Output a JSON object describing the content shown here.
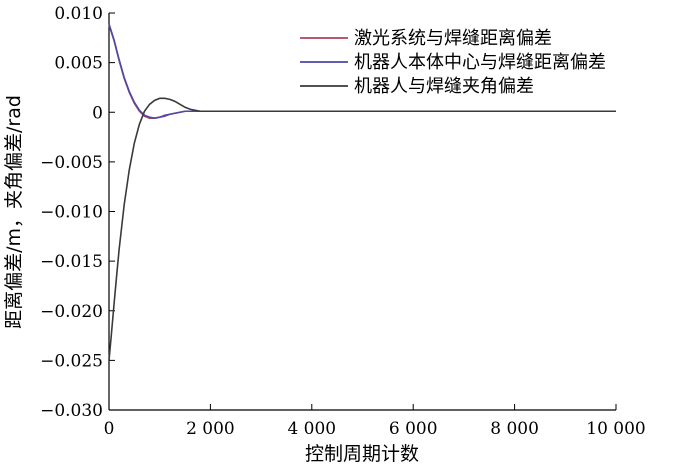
{
  "chart_data": {
    "type": "line",
    "title": "",
    "xlabel": "控制周期计数",
    "ylabel": "距离偏差/m，夹角偏差/rad",
    "xlim": [
      0,
      10000
    ],
    "ylim": [
      -0.03,
      0.01
    ],
    "x_ticks": [
      0,
      2000,
      4000,
      6000,
      8000,
      10000
    ],
    "x_tick_labels": [
      "0",
      "2 000",
      "4 000",
      "6 000",
      "8 000",
      "10 000"
    ],
    "y_ticks": [
      0.01,
      0.005,
      0,
      -0.005,
      -0.01,
      -0.015,
      -0.02,
      -0.025,
      -0.03
    ],
    "y_tick_labels": [
      "0.010",
      "0.005",
      "0",
      "−0.005",
      "−0.010",
      "−0.015",
      "−0.020",
      "−0.025",
      "−0.030"
    ],
    "grid": false,
    "legend_position": "top-right",
    "series": [
      {
        "name": "激光系统与焊缝距离偏差",
        "color": "#b0405a",
        "x": [
          0,
          100,
          200,
          300,
          400,
          500,
          600,
          700,
          800,
          900,
          1000,
          1100,
          1200,
          1300,
          1400,
          1500,
          1600,
          1700,
          1800,
          1900,
          2000,
          2200,
          2500,
          3000,
          4000,
          6000,
          8000,
          10000
        ],
        "y": [
          0.0088,
          0.0072,
          0.0052,
          0.0034,
          0.002,
          0.0009,
          0.0001,
          -0.0004,
          -0.0006,
          -0.0006,
          -0.0005,
          -0.0004,
          -0.0002,
          -0.0001,
          0.0,
          0.0001,
          0.0001,
          0.0001,
          0.0001,
          0.0001,
          0.0001,
          0.0001,
          0.0001,
          0.0001,
          0.0001,
          0.0001,
          0.0001,
          0.0001
        ]
      },
      {
        "name": "机器人本体中心与焊缝距离偏差",
        "color": "#4a4aa8",
        "x": [
          0,
          100,
          200,
          300,
          400,
          500,
          600,
          700,
          800,
          900,
          1000,
          1100,
          1200,
          1300,
          1400,
          1500,
          1600,
          1700,
          1800,
          1900,
          2000,
          2200,
          2500,
          3000,
          4000,
          6000,
          8000,
          10000
        ],
        "y": [
          0.0089,
          0.0073,
          0.0053,
          0.0035,
          0.0021,
          0.001,
          0.0002,
          -0.0003,
          -0.0005,
          -0.0006,
          -0.0005,
          -0.0003,
          -0.0002,
          -0.0001,
          0.0,
          0.0001,
          0.0001,
          0.0001,
          0.0001,
          0.0001,
          0.0001,
          0.0001,
          0.0001,
          0.0001,
          0.0001,
          0.0001,
          0.0001,
          0.0001
        ]
      },
      {
        "name": "机器人与焊缝夹角偏差",
        "color": "#3a3a3a",
        "x": [
          0,
          50,
          100,
          150,
          200,
          300,
          400,
          500,
          600,
          700,
          800,
          900,
          1000,
          1100,
          1200,
          1300,
          1400,
          1500,
          1600,
          1700,
          1800,
          1900,
          2000,
          2200,
          2500,
          3000,
          4000,
          6000,
          8000,
          10000
        ],
        "y": [
          -0.025,
          -0.0222,
          -0.0193,
          -0.0165,
          -0.0138,
          -0.0093,
          -0.0058,
          -0.0031,
          -0.0012,
          0.0001,
          0.0008,
          0.0012,
          0.0014,
          0.0014,
          0.0013,
          0.0011,
          0.0008,
          0.0005,
          0.0003,
          0.0002,
          0.0001,
          0.0001,
          0.0001,
          0.0001,
          0.0001,
          0.0001,
          0.0001,
          0.0001,
          0.0001,
          0.0001
        ]
      }
    ]
  }
}
